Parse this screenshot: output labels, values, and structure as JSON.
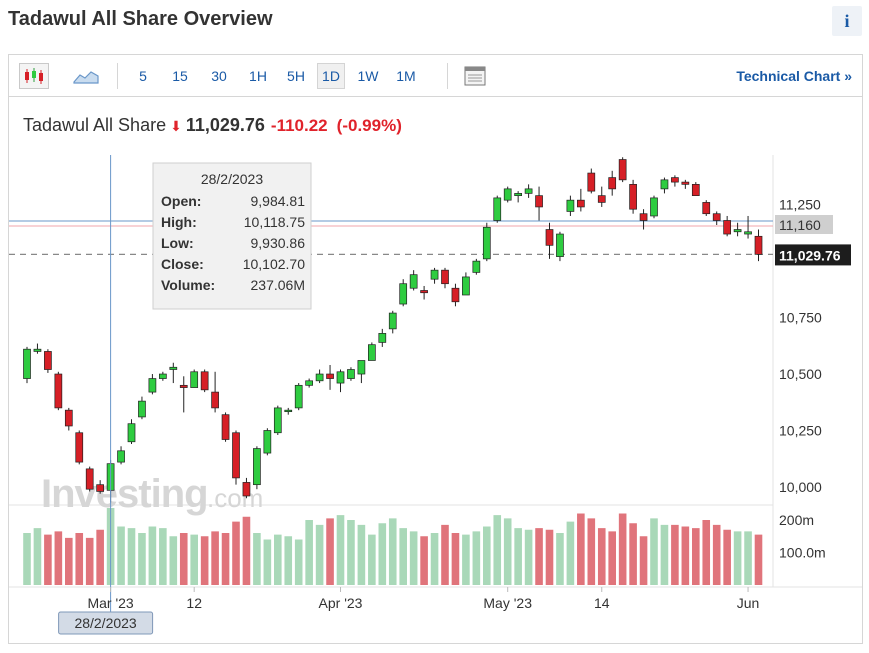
{
  "page": {
    "title": "Tadawul All Share Overview",
    "info_label": "i"
  },
  "toolbar": {
    "timeframes": [
      "5",
      "15",
      "30",
      "1H",
      "5H",
      "1D",
      "1W",
      "1M"
    ],
    "active_timeframe": "1D",
    "technical_chart_label": "Technical Chart »"
  },
  "quote": {
    "name": "Tadawul All Share",
    "price": "11,029.76",
    "change": "-110.22",
    "change_pct": "(-0.99%)"
  },
  "tooltip": {
    "date": "28/2/2023",
    "rows": [
      {
        "label": "Open:",
        "value": "9,984.81"
      },
      {
        "label": "High:",
        "value": "10,118.75"
      },
      {
        "label": "Low:",
        "value": "9,930.86"
      },
      {
        "label": "Close:",
        "value": "10,102.70"
      },
      {
        "label": "Volume:",
        "value": "237.06M"
      }
    ]
  },
  "crosshair_date_label": "28/2/2023",
  "watermark": "Investing.com",
  "colors": {
    "up": "#2ecc40",
    "down": "#d61f26",
    "vol_up": "#a9d8b8",
    "vol_down": "#e0747b",
    "link": "#1a5aa6",
    "crosshair": "#6a97c9"
  },
  "chart_data": {
    "type": "candlestick",
    "y_ticks": [
      "11,250",
      "11,160",
      "10,750",
      "10,500",
      "10,250",
      "10,000"
    ],
    "y_tick_values": [
      11250,
      11160,
      10750,
      10500,
      10250,
      10000
    ],
    "price_label": "11,029.76",
    "price_value": 11029.76,
    "ylim": [
      9920,
      11470
    ],
    "x_ticks": [
      {
        "label": "Mar '23",
        "index": 8
      },
      {
        "label": "12",
        "index": 16
      },
      {
        "label": "Apr '23",
        "index": 30
      },
      {
        "label": "May '23",
        "index": 46
      },
      {
        "label": "14",
        "index": 55
      },
      {
        "label": "Jun",
        "index": 69
      }
    ],
    "vol_ticks": [
      "200m",
      "100.0m"
    ],
    "vol_tick_values": [
      200,
      100
    ],
    "vol_max": 240,
    "hover_index": 8,
    "candles": [
      {
        "o": 10480,
        "h": 10620,
        "l": 10460,
        "c": 10610,
        "v": 160
      },
      {
        "o": 10600,
        "h": 10635,
        "l": 10590,
        "c": 10610,
        "v": 175
      },
      {
        "o": 10600,
        "h": 10610,
        "l": 10505,
        "c": 10520,
        "v": 155
      },
      {
        "o": 10500,
        "h": 10510,
        "l": 10340,
        "c": 10350,
        "v": 165
      },
      {
        "o": 10340,
        "h": 10350,
        "l": 10250,
        "c": 10270,
        "v": 145
      },
      {
        "o": 10240,
        "h": 10250,
        "l": 10100,
        "c": 10110,
        "v": 160
      },
      {
        "o": 10080,
        "h": 10090,
        "l": 9980,
        "c": 9990,
        "v": 145
      },
      {
        "o": 10010,
        "h": 10030,
        "l": 9970,
        "c": 9980,
        "v": 170
      },
      {
        "o": 9985,
        "h": 10119,
        "l": 9931,
        "c": 10103,
        "v": 237
      },
      {
        "o": 10110,
        "h": 10180,
        "l": 10100,
        "c": 10160,
        "v": 180
      },
      {
        "o": 10200,
        "h": 10300,
        "l": 10190,
        "c": 10280,
        "v": 175
      },
      {
        "o": 10310,
        "h": 10400,
        "l": 10300,
        "c": 10380,
        "v": 160
      },
      {
        "o": 10420,
        "h": 10500,
        "l": 10410,
        "c": 10480,
        "v": 180
      },
      {
        "o": 10480,
        "h": 10510,
        "l": 10470,
        "c": 10500,
        "v": 175
      },
      {
        "o": 10520,
        "h": 10550,
        "l": 10460,
        "c": 10530,
        "v": 150
      },
      {
        "o": 10450,
        "h": 10490,
        "l": 10330,
        "c": 10440,
        "v": 160
      },
      {
        "o": 10440,
        "h": 10520,
        "l": 10440,
        "c": 10510,
        "v": 155
      },
      {
        "o": 10510,
        "h": 10520,
        "l": 10420,
        "c": 10430,
        "v": 150
      },
      {
        "o": 10420,
        "h": 10510,
        "l": 10330,
        "c": 10350,
        "v": 165
      },
      {
        "o": 10320,
        "h": 10330,
        "l": 10200,
        "c": 10210,
        "v": 160
      },
      {
        "o": 10240,
        "h": 10250,
        "l": 10010,
        "c": 10040,
        "v": 195
      },
      {
        "o": 10020,
        "h": 10040,
        "l": 9950,
        "c": 9960,
        "v": 210
      },
      {
        "o": 10010,
        "h": 10180,
        "l": 9990,
        "c": 10170,
        "v": 160
      },
      {
        "o": 10150,
        "h": 10260,
        "l": 10140,
        "c": 10250,
        "v": 140
      },
      {
        "o": 10240,
        "h": 10360,
        "l": 10230,
        "c": 10350,
        "v": 155
      },
      {
        "o": 10340,
        "h": 10350,
        "l": 10320,
        "c": 10340,
        "v": 150
      },
      {
        "o": 10350,
        "h": 10460,
        "l": 10340,
        "c": 10450,
        "v": 140
      },
      {
        "o": 10450,
        "h": 10480,
        "l": 10440,
        "c": 10470,
        "v": 200
      },
      {
        "o": 10470,
        "h": 10520,
        "l": 10460,
        "c": 10500,
        "v": 185
      },
      {
        "o": 10500,
        "h": 10540,
        "l": 10430,
        "c": 10480,
        "v": 205
      },
      {
        "o": 10460,
        "h": 10520,
        "l": 10420,
        "c": 10510,
        "v": 215
      },
      {
        "o": 10480,
        "h": 10530,
        "l": 10470,
        "c": 10520,
        "v": 200
      },
      {
        "o": 10500,
        "h": 10550,
        "l": 10460,
        "c": 10560,
        "v": 185
      },
      {
        "o": 10560,
        "h": 10640,
        "l": 10560,
        "c": 10630,
        "v": 155
      },
      {
        "o": 10640,
        "h": 10700,
        "l": 10620,
        "c": 10680,
        "v": 190
      },
      {
        "o": 10700,
        "h": 10780,
        "l": 10680,
        "c": 10770,
        "v": 205
      },
      {
        "o": 10810,
        "h": 10920,
        "l": 10800,
        "c": 10900,
        "v": 175
      },
      {
        "o": 10880,
        "h": 10960,
        "l": 10870,
        "c": 10940,
        "v": 165
      },
      {
        "o": 10870,
        "h": 10890,
        "l": 10830,
        "c": 10860,
        "v": 150
      },
      {
        "o": 10920,
        "h": 10970,
        "l": 10900,
        "c": 10960,
        "v": 160
      },
      {
        "o": 10960,
        "h": 10970,
        "l": 10880,
        "c": 10900,
        "v": 185
      },
      {
        "o": 10880,
        "h": 10900,
        "l": 10800,
        "c": 10820,
        "v": 160
      },
      {
        "o": 10850,
        "h": 10950,
        "l": 10850,
        "c": 10930,
        "v": 155
      },
      {
        "o": 10950,
        "h": 11010,
        "l": 10940,
        "c": 11000,
        "v": 165
      },
      {
        "o": 11010,
        "h": 11170,
        "l": 11000,
        "c": 11150,
        "v": 180
      },
      {
        "o": 11180,
        "h": 11290,
        "l": 11170,
        "c": 11280,
        "v": 215
      },
      {
        "o": 11270,
        "h": 11330,
        "l": 11260,
        "c": 11320,
        "v": 205
      },
      {
        "o": 11290,
        "h": 11310,
        "l": 11260,
        "c": 11300,
        "v": 175
      },
      {
        "o": 11300,
        "h": 11340,
        "l": 11280,
        "c": 11320,
        "v": 170
      },
      {
        "o": 11290,
        "h": 11330,
        "l": 11180,
        "c": 11240,
        "v": 175
      },
      {
        "o": 11140,
        "h": 11170,
        "l": 11010,
        "c": 11070,
        "v": 170
      },
      {
        "o": 11020,
        "h": 11130,
        "l": 11000,
        "c": 11120,
        "v": 160
      },
      {
        "o": 11220,
        "h": 11290,
        "l": 11200,
        "c": 11270,
        "v": 195
      },
      {
        "o": 11270,
        "h": 11320,
        "l": 11220,
        "c": 11240,
        "v": 220
      },
      {
        "o": 11390,
        "h": 11410,
        "l": 11300,
        "c": 11310,
        "v": 205
      },
      {
        "o": 11290,
        "h": 11330,
        "l": 11240,
        "c": 11260,
        "v": 175
      },
      {
        "o": 11370,
        "h": 11400,
        "l": 11290,
        "c": 11320,
        "v": 165
      },
      {
        "o": 11450,
        "h": 11460,
        "l": 11350,
        "c": 11360,
        "v": 220
      },
      {
        "o": 11340,
        "h": 11360,
        "l": 11210,
        "c": 11230,
        "v": 190
      },
      {
        "o": 11210,
        "h": 11230,
        "l": 11140,
        "c": 11180,
        "v": 150
      },
      {
        "o": 11200,
        "h": 11290,
        "l": 11190,
        "c": 11280,
        "v": 205
      },
      {
        "o": 11320,
        "h": 11370,
        "l": 11300,
        "c": 11360,
        "v": 185
      },
      {
        "o": 11370,
        "h": 11380,
        "l": 11330,
        "c": 11350,
        "v": 185
      },
      {
        "o": 11350,
        "h": 11360,
        "l": 11320,
        "c": 11340,
        "v": 180
      },
      {
        "o": 11340,
        "h": 11350,
        "l": 11290,
        "c": 11290,
        "v": 175
      },
      {
        "o": 11260,
        "h": 11270,
        "l": 11200,
        "c": 11210,
        "v": 200
      },
      {
        "o": 11210,
        "h": 11220,
        "l": 11160,
        "c": 11180,
        "v": 185
      },
      {
        "o": 11180,
        "h": 11200,
        "l": 11110,
        "c": 11120,
        "v": 170
      },
      {
        "o": 11130,
        "h": 11170,
        "l": 11110,
        "c": 11140,
        "v": 165
      },
      {
        "o": 11120,
        "h": 11200,
        "l": 11100,
        "c": 11130,
        "v": 165
      },
      {
        "o": 11110,
        "h": 11140,
        "l": 11000,
        "c": 11030,
        "v": 155
      }
    ]
  }
}
